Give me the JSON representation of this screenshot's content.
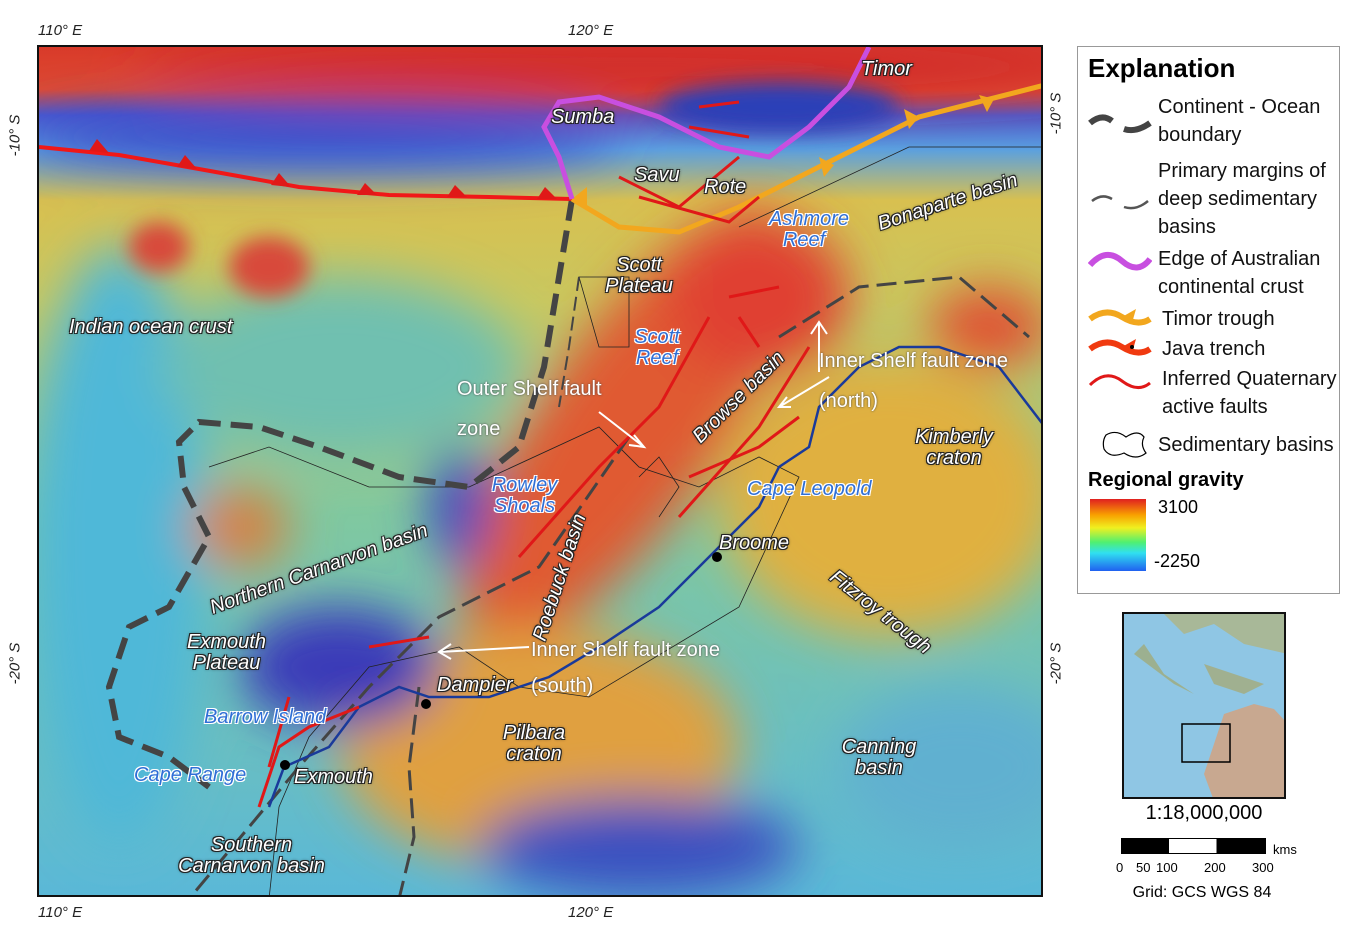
{
  "axes": {
    "top_ticks": [
      "110° E",
      "120° E"
    ],
    "bottom_ticks": [
      "110° E",
      "120° E"
    ],
    "left_ticks": [
      "-10° S",
      "-20° S"
    ],
    "right_ticks": [
      "-10° S",
      "-20° S"
    ]
  },
  "map_labels": {
    "timor": "Timor",
    "sumba": "Sumba",
    "savu": "Savu",
    "rote": "Rote",
    "ashmore": "Ashmore Reef",
    "bonaparte": "Bonaparte basin",
    "scott_plateau": "Scott Plateau",
    "scott_reef": "Scott Reef",
    "indian_ocean": "Indian ocean crust",
    "outer_shelf": "Outer Shelf fault zone",
    "browse": "Browse basin",
    "inner_north": "Inner Shelf fault zone (north)",
    "kimberly": "Kimberly craton",
    "cape_leopold": "Cape Leopold",
    "rowley": "Rowley Shoals",
    "roebuck": "Roebuck basin",
    "broome": "Broome",
    "northern_carnarvon": "Northern Carnarvon basin",
    "fitzroy": "Fitzroy trough",
    "exmouth_plateau": "Exmouth Plateau",
    "inner_south": "Inner Shelf fault zone (south)",
    "dampier": "Dampier",
    "barrow": "Barrow Island",
    "pilbara": "Pilbara craton",
    "canning": "Canning basin",
    "cape_range": "Cape Range",
    "exmouth": "Exmouth",
    "southern_carnarvon": "Southern Carnarvon basin"
  },
  "legend": {
    "title": "Explanation",
    "items": [
      {
        "label": "Continent - Ocean boundary",
        "color": "#444444",
        "icon": "thick-dashed-line"
      },
      {
        "label": "Primary margins of deep sedimentary basins",
        "color": "#555555",
        "icon": "thin-dashed-line"
      },
      {
        "label": "Edge of Australian continental crust",
        "color": "#c84fe0",
        "icon": "purple-line"
      },
      {
        "label": "Timor trough",
        "color": "#f2a71e",
        "icon": "barbed-line"
      },
      {
        "label": "Java trench",
        "color": "#f03a10",
        "icon": "barbed-line"
      },
      {
        "label": "Inferred Quaternary active faults",
        "color": "#e01818",
        "icon": "red-line"
      },
      {
        "label": "Sedimentary basins",
        "color": "#000000",
        "icon": "outline-polygon"
      }
    ],
    "gravity_title": "Regional gravity",
    "gravity_max": "3100",
    "gravity_min": "-2250"
  },
  "inset": {
    "scale": "1:18,000,000",
    "scale_ticks": [
      "0",
      "50",
      "100",
      "200",
      "300"
    ],
    "scale_unit": "kms",
    "grid": "Grid: GCS WGS 84"
  }
}
